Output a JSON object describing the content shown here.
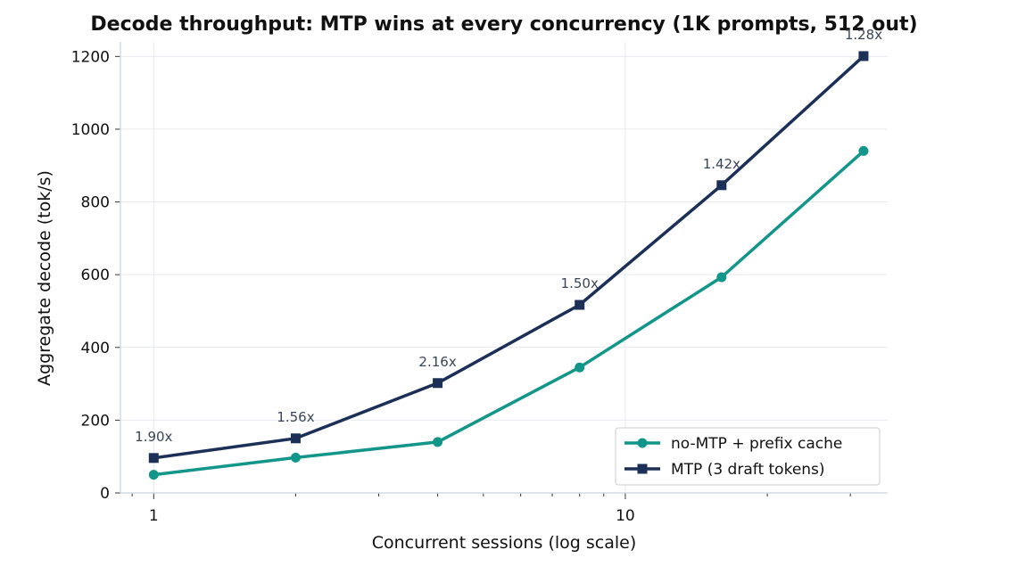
{
  "chart_data": {
    "type": "line",
    "title": "Decode throughput: MTP wins at every concurrency (1K prompts, 512 out)",
    "xlabel": "Concurrent sessions (log scale)",
    "ylabel": "Aggregate decode (tok/s)",
    "xscale": "log",
    "xlim": [
      0.85,
      36
    ],
    "ylim": [
      0,
      1240
    ],
    "x": [
      1,
      2,
      4,
      8,
      16,
      32
    ],
    "xticks": [
      {
        "value": 1,
        "label": "1"
      },
      {
        "value": 10,
        "label": "10"
      }
    ],
    "yticks": [
      0,
      200,
      400,
      600,
      800,
      1000,
      1200
    ],
    "grid": true,
    "legend_position": "lower-right",
    "series": [
      {
        "name": "no-MTP + prefix cache",
        "values": [
          50,
          97,
          140,
          345,
          593,
          940
        ],
        "color": "#13968a",
        "marker": "circle"
      },
      {
        "name": "MTP (3 draft tokens)",
        "values": [
          96,
          150,
          302,
          517,
          846,
          1201
        ],
        "color": "#1b2f57",
        "marker": "square"
      }
    ],
    "annotations": [
      {
        "x": 1,
        "text": "1.90x"
      },
      {
        "x": 2,
        "text": "1.56x"
      },
      {
        "x": 4,
        "text": "2.16x"
      },
      {
        "x": 8,
        "text": "1.50x"
      },
      {
        "x": 16,
        "text": "1.42x"
      },
      {
        "x": 32,
        "text": "1.28x"
      }
    ]
  }
}
